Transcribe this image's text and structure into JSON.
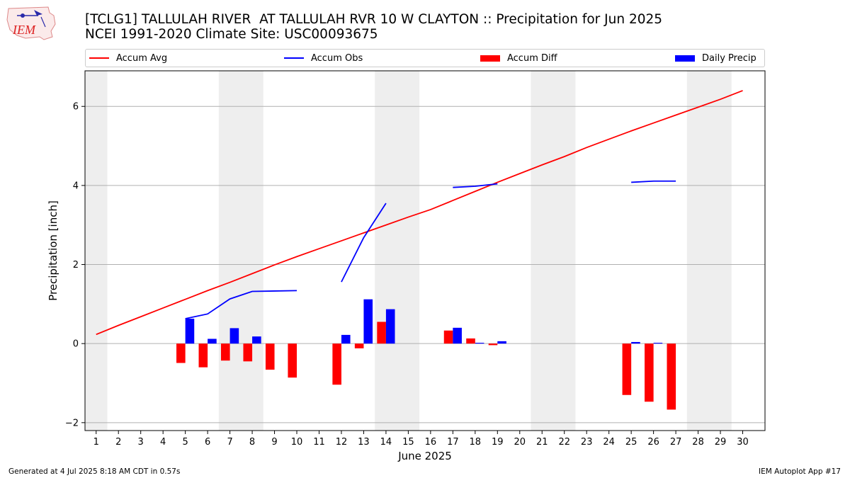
{
  "header": {
    "title_line1": "[TCLG1] TALLULAH RIVER  AT TALLULAH RVR 10 W CLAYTON :: Precipitation for Jun 2025",
    "title_line2": "NCEI 1991-2020 Climate Site: USC00093675",
    "logo_text": "IEM"
  },
  "footer": {
    "generated": "Generated at 4 Jul 2025 8:18 AM CDT in 0.57s",
    "app": "IEM Autoplot App #17"
  },
  "colors": {
    "accum_avg": "#ff0000",
    "accum_obs": "#0000ff",
    "accum_diff": "#ff0000",
    "daily_precip": "#0000ff",
    "weekend_shade": "#eeeeee",
    "grid": "#b0b0b0"
  },
  "chart_data": {
    "type": "bar",
    "xlabel": "June 2025",
    "ylabel": "Precipitation [inch]",
    "xlim": [
      0.5,
      31.0
    ],
    "ylim": [
      -2.2,
      6.9
    ],
    "x_ticks": [
      1,
      2,
      3,
      4,
      5,
      6,
      7,
      8,
      9,
      10,
      11,
      12,
      13,
      14,
      15,
      16,
      17,
      18,
      19,
      20,
      21,
      22,
      23,
      24,
      25,
      26,
      27,
      28,
      29,
      30
    ],
    "y_ticks": [
      -2,
      0,
      2,
      4,
      6
    ],
    "grid": "horizontal",
    "legend_position": "top",
    "weekend_shaded_days": [
      [
        1,
        1
      ],
      [
        7,
        8
      ],
      [
        14,
        15
      ],
      [
        21,
        22
      ],
      [
        28,
        29
      ]
    ],
    "series": [
      {
        "name": "Accum Avg",
        "kind": "line",
        "x": [
          1,
          2,
          3,
          4,
          5,
          6,
          7,
          8,
          9,
          10,
          11,
          12,
          13,
          14,
          15,
          16,
          17,
          18,
          19,
          20,
          21,
          22,
          23,
          24,
          25,
          26,
          27,
          28,
          29,
          30
        ],
        "y": [
          0.23,
          0.46,
          0.68,
          0.9,
          1.12,
          1.34,
          1.55,
          1.77,
          1.99,
          2.2,
          2.4,
          2.6,
          2.8,
          3.0,
          3.2,
          3.39,
          3.62,
          3.85,
          4.08,
          4.3,
          4.52,
          4.73,
          4.96,
          5.17,
          5.38,
          5.58,
          5.78,
          5.98,
          6.18,
          6.4
        ]
      },
      {
        "name": "Accum Obs",
        "kind": "line",
        "segments": [
          {
            "x": [
              5,
              6,
              7,
              8,
              9,
              10
            ],
            "y": [
              0.63,
              0.75,
              1.13,
              1.32,
              1.33,
              1.34
            ]
          },
          {
            "x": [
              12,
              13,
              14
            ],
            "y": [
              1.56,
              2.68,
              3.55
            ]
          },
          {
            "x": [
              17,
              18,
              19
            ],
            "y": [
              3.95,
              3.98,
              4.04
            ]
          },
          {
            "x": [
              25,
              26,
              27
            ],
            "y": [
              4.08,
              4.11,
              4.11
            ]
          }
        ]
      },
      {
        "name": "Accum Diff",
        "kind": "bar",
        "x": [
          5,
          6,
          7,
          8,
          9,
          10,
          12,
          13,
          14,
          17,
          18,
          19,
          25,
          26,
          27
        ],
        "y": [
          -0.49,
          -0.6,
          -0.43,
          -0.45,
          -0.66,
          -0.86,
          -1.04,
          -0.12,
          0.55,
          0.33,
          0.13,
          -0.04,
          -1.3,
          -1.47,
          -1.67
        ]
      },
      {
        "name": "Daily Precip",
        "kind": "bar",
        "x": [
          5,
          6,
          7,
          8,
          12,
          13,
          14,
          17,
          18,
          19,
          25,
          26
        ],
        "y": [
          0.63,
          0.12,
          0.39,
          0.18,
          0.22,
          1.12,
          0.87,
          0.4,
          0.02,
          0.06,
          0.04,
          0.02
        ]
      }
    ]
  }
}
